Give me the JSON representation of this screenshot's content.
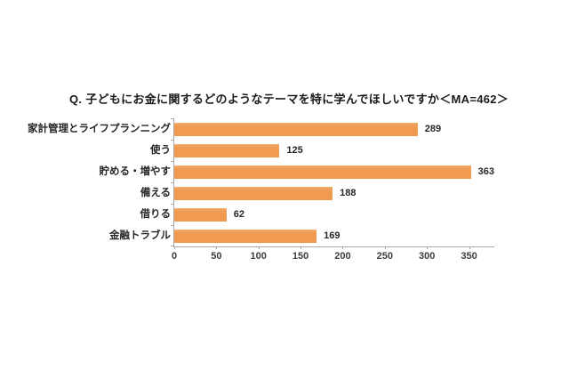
{
  "chart_data": {
    "type": "bar",
    "orientation": "horizontal",
    "title": "Q. 子どもにお金に関するどのようなテーマを特に学んでほしいですか＜MA=462＞",
    "categories": [
      "家計管理とライフプランニング",
      "使う",
      "貯める・増やす",
      "備える",
      "借りる",
      "金融トラブル"
    ],
    "values": [
      289,
      125,
      363,
      188,
      62,
      169
    ],
    "xlabel": "",
    "ylabel": "",
    "xlim": [
      0,
      380
    ],
    "xticks": [
      0,
      50,
      100,
      150,
      200,
      250,
      300,
      350
    ],
    "grid": false,
    "legend": "none",
    "bar_color": "#f09c52",
    "axis_color": "#a8a8a8",
    "text_color": "#262626"
  }
}
